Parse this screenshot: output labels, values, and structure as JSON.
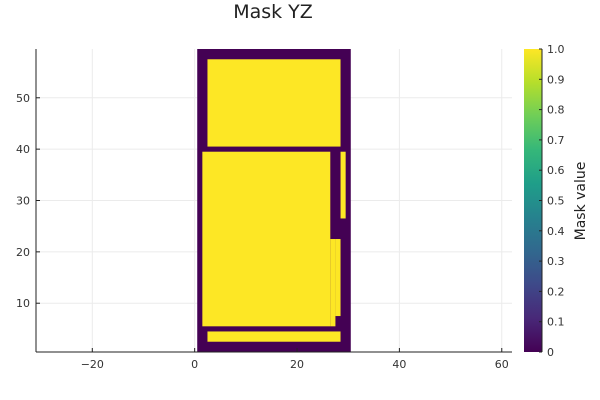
{
  "chart_data": {
    "type": "heatmap",
    "title": "Mask YZ",
    "xlabel": "",
    "ylabel": "",
    "xlim": [
      -31,
      62
    ],
    "ylim": [
      0.5,
      59.5
    ],
    "grid": true,
    "x_ticks": [
      -20,
      0,
      20,
      40,
      60
    ],
    "x_tick_labels": [
      "−20",
      "0",
      "20",
      "40",
      "60"
    ],
    "y_ticks": [
      10,
      20,
      30,
      40,
      50
    ],
    "y_tick_labels": [
      "10",
      "20",
      "30",
      "40",
      "50"
    ],
    "colorbar": {
      "label": "Mask value",
      "colormap": "viridis",
      "range": [
        0,
        1
      ],
      "ticks": [
        0,
        0.1,
        0.2,
        0.3,
        0.4,
        0.5,
        0.6,
        0.7,
        0.8,
        0.9,
        1.0
      ],
      "tick_labels": [
        "0",
        "0.1",
        "0.2",
        "0.3",
        "0.4",
        "0.5",
        "0.6",
        "0.7",
        "0.8",
        "0.9",
        "1.0"
      ],
      "gradient": [
        "#440154",
        "#482878",
        "#3e4989",
        "#31688e",
        "#26828e",
        "#1f9e89",
        "#35b779",
        "#6ece58",
        "#b5de2b",
        "#fde725"
      ]
    },
    "mask_value_colors": {
      "0": "#440154",
      "1": "#fde725"
    },
    "grid_extent": {
      "x": [
        0.5,
        30.5
      ],
      "y": [
        0.5,
        59.5
      ],
      "background_value": 0
    },
    "regions_value_1": [
      {
        "x": [
          2.5,
          28.5
        ],
        "y": [
          2.5,
          4.5
        ]
      },
      {
        "x": [
          1.5,
          26.5
        ],
        "y": [
          5.5,
          39.5
        ]
      },
      {
        "x": [
          26.5,
          27.5
        ],
        "y": [
          5.5,
          22.5
        ]
      },
      {
        "x": [
          27.5,
          28.5
        ],
        "y": [
          7.5,
          22.5
        ]
      },
      {
        "x": [
          28.5,
          29.5
        ],
        "y": [
          26.5,
          39.5
        ]
      },
      {
        "x": [
          2.5,
          28.5
        ],
        "y": [
          40.5,
          57.5
        ]
      }
    ]
  }
}
